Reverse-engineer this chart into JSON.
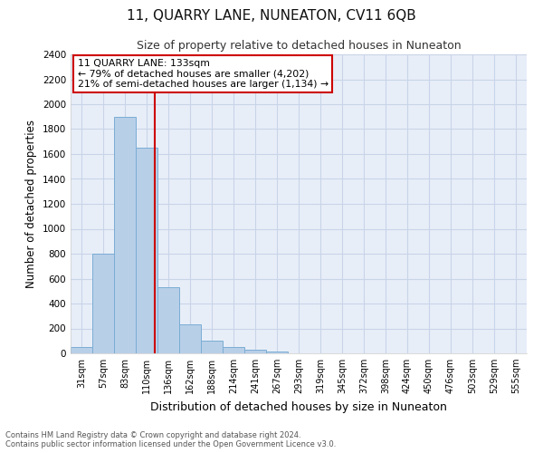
{
  "title": "11, QUARRY LANE, NUNEATON, CV11 6QB",
  "subtitle": "Size of property relative to detached houses in Nuneaton",
  "xlabel": "Distribution of detached houses by size in Nuneaton",
  "ylabel": "Number of detached properties",
  "categories": [
    "31sqm",
    "57sqm",
    "83sqm",
    "110sqm",
    "136sqm",
    "162sqm",
    "188sqm",
    "214sqm",
    "241sqm",
    "267sqm",
    "293sqm",
    "319sqm",
    "345sqm",
    "372sqm",
    "398sqm",
    "424sqm",
    "450sqm",
    "476sqm",
    "503sqm",
    "529sqm",
    "555sqm"
  ],
  "values": [
    50,
    800,
    1900,
    1650,
    530,
    235,
    105,
    50,
    30,
    18,
    0,
    0,
    0,
    0,
    0,
    0,
    0,
    0,
    0,
    0,
    0
  ],
  "bar_color": "#b8cfe8",
  "bar_edge_color": "#7aadd4",
  "vline_color": "#cc0000",
  "annotation_title": "11 QUARRY LANE: 133sqm",
  "annotation_line1": "← 79% of detached houses are smaller (4,202)",
  "annotation_line2": "21% of semi-detached houses are larger (1,134) →",
  "annotation_box_color": "#ffffff",
  "annotation_box_edge": "#cc0000",
  "ylim": [
    0,
    2400
  ],
  "yticks": [
    0,
    200,
    400,
    600,
    800,
    1000,
    1200,
    1400,
    1600,
    1800,
    2000,
    2200,
    2400
  ],
  "grid_color": "#c8d4e8",
  "background_color": "#e8eef8",
  "footer_line1": "Contains HM Land Registry data © Crown copyright and database right 2024.",
  "footer_line2": "Contains public sector information licensed under the Open Government Licence v3.0."
}
